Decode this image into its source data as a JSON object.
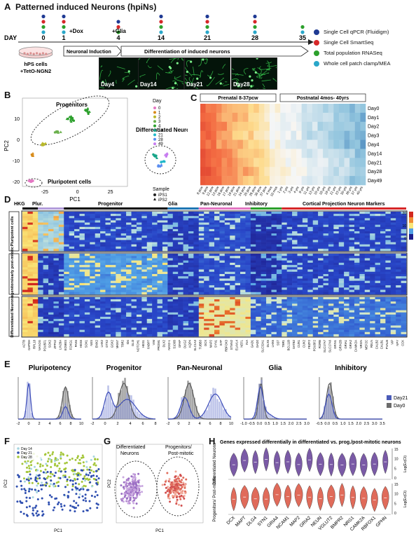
{
  "panelA": {
    "label": "A",
    "title": "Patterned induced Neurons (hpiNs)",
    "day_label": "DAY",
    "days": [
      "0",
      "1",
      "4",
      "14",
      "21",
      "28",
      "35"
    ],
    "events": [
      "+Dox",
      "+Glia"
    ],
    "stages": [
      "Neuronal Induction",
      "Differentiation of induced neurons"
    ],
    "cells_line1": "hPS cells",
    "cells_line2": "+TetO-NGN2",
    "images": [
      "Day4",
      "Day14",
      "Day21",
      "Day28"
    ],
    "legend": [
      {
        "text": "Single Cell qPCR (Fluidigm)",
        "color": "#1f3a93"
      },
      {
        "text": "Single Cell SmartSeq",
        "color": "#d62728"
      },
      {
        "text": "Total population RNASeq",
        "color": "#2ca02c"
      },
      {
        "text": "Whole cell patch clamp/MEA",
        "color": "#2aa7c9"
      }
    ]
  },
  "panelB": {
    "label": "B",
    "annotations": [
      "Progenitors",
      "Pluripotent cells",
      "Differentiated Neurons"
    ],
    "xlabel": "PC1",
    "ylabel": "PC2",
    "legend_day_title": "Day",
    "legend_days": [
      {
        "text": "0",
        "color": "#e377c2"
      },
      {
        "text": "1",
        "color": "#d88c1c"
      },
      {
        "text": "2",
        "color": "#b8b82a"
      },
      {
        "text": "3",
        "color": "#6ab04c"
      },
      {
        "text": "4",
        "color": "#2ca02c"
      },
      {
        "text": "14",
        "color": "#17a589"
      },
      {
        "text": "21",
        "color": "#1fb8c9"
      },
      {
        "text": "28",
        "color": "#5b8ef0"
      },
      {
        "text": "49",
        "color": "#c77cf0"
      }
    ],
    "legend_sample_title": "Sample",
    "legend_samples": [
      "iPS1",
      "iPS2"
    ]
  },
  "panelC": {
    "label": "C",
    "groups": [
      "Prenatal 8-37pcw",
      "Postnatal 4mos- 40yrs"
    ],
    "rows": [
      "Day0",
      "Day1",
      "Day2",
      "Day3",
      "Day4",
      "Day14",
      "Day21",
      "Day28",
      "Day49"
    ],
    "cols": [
      "8 pcw",
      "9 pcw",
      "12 pcw",
      "13 pcw",
      "16 pcw",
      "17 pcw",
      "19 pcw",
      "21 pcw",
      "24 pcw",
      "25 pcw",
      "26 pcw",
      "35 pcw",
      "37 pcw",
      "4 mos",
      "10 mos",
      "1 yrs",
      "2 yrs",
      "3 yrs",
      "4 yrs",
      "8 yrs",
      "11 yrs",
      "13 yrs",
      "15 yrs",
      "18 yrs",
      "19 yrs",
      "21 yrs",
      "23 yrs",
      "30 yrs",
      "36 yrs",
      "37 yrs",
      "40 yrs"
    ]
  },
  "panelD": {
    "label": "D",
    "categories": [
      "HKG",
      "Plur.",
      "Progenitor",
      "Glia",
      "Pan-Neuronal",
      "Inhibitory",
      "Cortical Projection Neuron Markers"
    ],
    "category_colors": [
      "#000000",
      "#b39ddb",
      "#000000",
      "#1f77b4",
      "#e377c2",
      "#2ca02c",
      "#d62728"
    ],
    "row_groups": [
      "Pluripotent cells",
      "Progenitors/early post-mitotic",
      "Differentiated Neurons"
    ],
    "genes": [
      "ACTB",
      "GAPDH",
      "RPL18",
      "NANOG",
      "POU5F1",
      "SOX2",
      "ZFP42",
      "LIN28A",
      "EOMES",
      "FOXG1",
      "PAX6",
      "HES5",
      "SOX1",
      "NES",
      "EMX2",
      "LHX2",
      "OTX2",
      "GSX2",
      "MKI67",
      "TBR2",
      "ID4",
      "GLI3",
      "NOTCH1",
      "HES1",
      "FABP7",
      "VIM",
      "PROM1",
      "DLX2",
      "NKX2-1",
      "S100B",
      "GFAP",
      "OLIG2",
      "AQP4",
      "SLC1A3",
      "TUBB3",
      "DCX",
      "MAP2",
      "SYN1",
      "SYP",
      "RBFOX3",
      "STMN2",
      "ELAVL4",
      "NEFL",
      "INA",
      "GAD1",
      "GAD2",
      "SLC32A1",
      "DLX5",
      "LHX6",
      "SST",
      "TBR1",
      "BCL11B",
      "SATB2",
      "CUX1",
      "CUX2",
      "FEZF2",
      "POU3F2",
      "RORB",
      "SLC17A7",
      "SLC17A6",
      "GRIN1",
      "GRIN2B",
      "GRIA1",
      "GRIA2",
      "CAMK2A",
      "NRGN",
      "MEF2C",
      "RELN",
      "CALB2",
      "CALB1",
      "PVALB",
      "VIP",
      "NPY",
      "CCK"
    ],
    "colorbar": [
      "20",
      "10",
      "0"
    ]
  },
  "panelE": {
    "label": "E",
    "panels": [
      {
        "title": "Pluripotency",
        "xticks": [
          "-2",
          "0",
          "2",
          "4",
          "6",
          "8",
          "10"
        ]
      },
      {
        "title": "Progenitor",
        "xticks": [
          "-2",
          "0",
          "2",
          "4",
          "6",
          "8"
        ]
      },
      {
        "title": "Pan-Neuronal",
        "xticks": [
          "-2",
          "0",
          "2",
          "4",
          "6",
          "8",
          "10"
        ]
      },
      {
        "title": "Glia",
        "xticks": [
          "-1.0",
          "-0.5",
          "0.0",
          "0.5",
          "1.0",
          "1.5",
          "2.0",
          "2.5",
          "3.0"
        ]
      },
      {
        "title": "Inhibitory",
        "xticks": [
          "-0.5",
          "0.0",
          "0.5",
          "1.0",
          "1.5",
          "2.0",
          "2.5",
          "3.0",
          "3.5"
        ]
      }
    ],
    "legend": [
      {
        "text": "Day21",
        "color": "#4a5bb8"
      },
      {
        "text": "Day0",
        "color": "#6b6b6b"
      }
    ]
  },
  "panelF": {
    "label": "F",
    "legend": [
      {
        "text": "Day 14",
        "color": "#a6d5e0"
      },
      {
        "text": "Day 21",
        "color": "#2f4fb0"
      },
      {
        "text": "Day 28",
        "color": "#a4c639"
      }
    ],
    "xlabel": "PC1",
    "ylabel": "PC2"
  },
  "panelG": {
    "label": "G",
    "annotations": [
      "Differentiated Neurons",
      "Progenitors/ Post-mitotic"
    ],
    "xlabel": "PC1",
    "ylabel": "PC2"
  },
  "panelH": {
    "label": "H",
    "title": "Genes expressed differentially in differentiated vs. prog./post-mitotic neurons",
    "rows": [
      "Differentiated Neurons",
      "Progenitors/ Post-mitotic"
    ],
    "genes": [
      "DCX",
      "MAPT",
      "DLG4",
      "SYN1",
      "GRIA4",
      "NCAM1",
      "MAP2",
      "GRIA2",
      "NEUN",
      "VGLUT2",
      "BMPR2",
      "NRG1",
      "CAMK2A",
      "RBFOX1",
      "GPHN"
    ],
    "yticks": [
      "15",
      "10",
      "5",
      "0"
    ],
    "ylabel": "Log(Ex(Ct)",
    "colors": {
      "top": "#7a5aa6",
      "bottom": "#e06b5a"
    }
  }
}
